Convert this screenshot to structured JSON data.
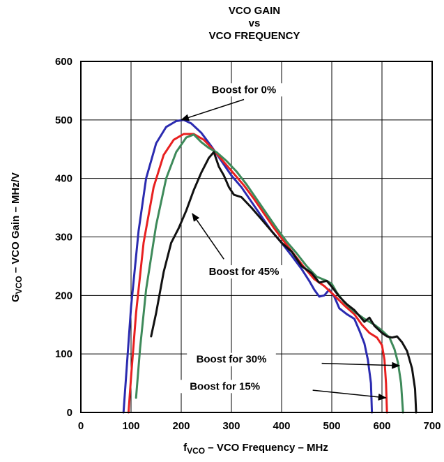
{
  "chart_data": {
    "type": "line",
    "title_lines": [
      "VCO GAIN",
      "vs",
      "VCO FREQUENCY"
    ],
    "ylabel": "GVCO – VCO Gain – MHz/V",
    "ylabel_main": "G",
    "ylabel_sub": "VCO",
    "ylabel_rest": " – VCO Gain – MHz/V",
    "xlabel": "fVCO – VCO Frequency – MHz",
    "xlabel_main": "f",
    "xlabel_sub": "VCO",
    "xlabel_rest": " – VCO Frequency – MHz",
    "xlim": [
      0,
      700
    ],
    "ylim": [
      0,
      600
    ],
    "xticks": [
      0,
      100,
      200,
      300,
      400,
      500,
      600,
      700
    ],
    "yticks": [
      0,
      100,
      200,
      300,
      400,
      500,
      600
    ],
    "grid": true,
    "series": [
      {
        "name": "Boost for 0%",
        "color": "#2b2bb0",
        "points": [
          [
            85,
            0
          ],
          [
            90,
            60
          ],
          [
            100,
            180
          ],
          [
            115,
            310
          ],
          [
            130,
            400
          ],
          [
            150,
            460
          ],
          [
            170,
            488
          ],
          [
            190,
            498
          ],
          [
            205,
            500
          ],
          [
            220,
            494
          ],
          [
            240,
            478
          ],
          [
            260,
            455
          ],
          [
            280,
            430
          ],
          [
            300,
            405
          ],
          [
            320,
            385
          ],
          [
            340,
            360
          ],
          [
            360,
            335
          ],
          [
            380,
            310
          ],
          [
            400,
            290
          ],
          [
            420,
            268
          ],
          [
            440,
            245
          ],
          [
            455,
            225
          ],
          [
            465,
            210
          ],
          [
            475,
            198
          ],
          [
            485,
            200
          ],
          [
            495,
            210
          ],
          [
            505,
            198
          ],
          [
            515,
            178
          ],
          [
            530,
            168
          ],
          [
            545,
            160
          ],
          [
            555,
            140
          ],
          [
            565,
            118
          ],
          [
            572,
            90
          ],
          [
            578,
            50
          ],
          [
            580,
            0
          ]
        ]
      },
      {
        "name": "Boost for 15%",
        "color": "#e82020",
        "points": [
          [
            95,
            0
          ],
          [
            100,
            60
          ],
          [
            110,
            170
          ],
          [
            125,
            290
          ],
          [
            145,
            385
          ],
          [
            165,
            440
          ],
          [
            185,
            466
          ],
          [
            205,
            476
          ],
          [
            225,
            476
          ],
          [
            245,
            466
          ],
          [
            265,
            448
          ],
          [
            285,
            428
          ],
          [
            305,
            408
          ],
          [
            325,
            388
          ],
          [
            345,
            365
          ],
          [
            365,
            340
          ],
          [
            385,
            315
          ],
          [
            405,
            292
          ],
          [
            425,
            270
          ],
          [
            445,
            248
          ],
          [
            465,
            228
          ],
          [
            485,
            216
          ],
          [
            505,
            200
          ],
          [
            525,
            183
          ],
          [
            545,
            168
          ],
          [
            560,
            150
          ],
          [
            575,
            136
          ],
          [
            590,
            128
          ],
          [
            600,
            115
          ],
          [
            605,
            90
          ],
          [
            608,
            50
          ],
          [
            610,
            0
          ]
        ]
      },
      {
        "name": "Boost for 30%",
        "color": "#3e8a5a",
        "points": [
          [
            110,
            25
          ],
          [
            118,
            110
          ],
          [
            130,
            210
          ],
          [
            150,
            320
          ],
          [
            170,
            400
          ],
          [
            190,
            445
          ],
          [
            210,
            470
          ],
          [
            225,
            475
          ],
          [
            240,
            462
          ],
          [
            255,
            452
          ],
          [
            270,
            445
          ],
          [
            290,
            430
          ],
          [
            310,
            412
          ],
          [
            330,
            390
          ],
          [
            350,
            365
          ],
          [
            370,
            340
          ],
          [
            390,
            315
          ],
          [
            410,
            292
          ],
          [
            430,
            272
          ],
          [
            450,
            250
          ],
          [
            470,
            232
          ],
          [
            490,
            225
          ],
          [
            500,
            220
          ],
          [
            510,
            205
          ],
          [
            525,
            188
          ],
          [
            545,
            172
          ],
          [
            565,
            160
          ],
          [
            585,
            150
          ],
          [
            600,
            140
          ],
          [
            615,
            128
          ],
          [
            625,
            108
          ],
          [
            632,
            85
          ],
          [
            638,
            50
          ],
          [
            642,
            0
          ]
        ]
      },
      {
        "name": "Boost for 45%",
        "color": "#111111",
        "points": [
          [
            140,
            130
          ],
          [
            150,
            170
          ],
          [
            165,
            240
          ],
          [
            180,
            290
          ],
          [
            195,
            315
          ],
          [
            210,
            345
          ],
          [
            225,
            380
          ],
          [
            240,
            410
          ],
          [
            255,
            435
          ],
          [
            265,
            445
          ],
          [
            275,
            420
          ],
          [
            285,
            405
          ],
          [
            295,
            385
          ],
          [
            305,
            372
          ],
          [
            320,
            368
          ],
          [
            340,
            350
          ],
          [
            360,
            330
          ],
          [
            380,
            310
          ],
          [
            400,
            290
          ],
          [
            420,
            275
          ],
          [
            440,
            250
          ],
          [
            460,
            238
          ],
          [
            475,
            222
          ],
          [
            490,
            225
          ],
          [
            500,
            215
          ],
          [
            515,
            198
          ],
          [
            530,
            185
          ],
          [
            545,
            175
          ],
          [
            555,
            165
          ],
          [
            565,
            155
          ],
          [
            575,
            162
          ],
          [
            585,
            148
          ],
          [
            600,
            136
          ],
          [
            610,
            130
          ],
          [
            620,
            128
          ],
          [
            630,
            130
          ],
          [
            640,
            120
          ],
          [
            650,
            105
          ],
          [
            660,
            75
          ],
          [
            666,
            40
          ],
          [
            668,
            0
          ]
        ]
      }
    ],
    "annotations": [
      {
        "text": "Boost for 0%",
        "label_at": [
          325,
          546
        ],
        "arrow_from": [
          325,
          535
        ],
        "arrow_to": [
          200,
          500
        ]
      },
      {
        "text": "Boost for 45%",
        "label_at": [
          325,
          235
        ],
        "arrow_from": [
          285,
          262
        ],
        "arrow_to": [
          222,
          340
        ]
      },
      {
        "text": "Boost for 30%",
        "label_at": [
          300,
          85
        ],
        "arrow_from": [
          480,
          84
        ],
        "arrow_to": [
          635,
          80
        ]
      },
      {
        "text": "Boost for 15%",
        "label_at": [
          287,
          39
        ],
        "arrow_from": [
          462,
          38
        ],
        "arrow_to": [
          608,
          25
        ]
      }
    ]
  }
}
